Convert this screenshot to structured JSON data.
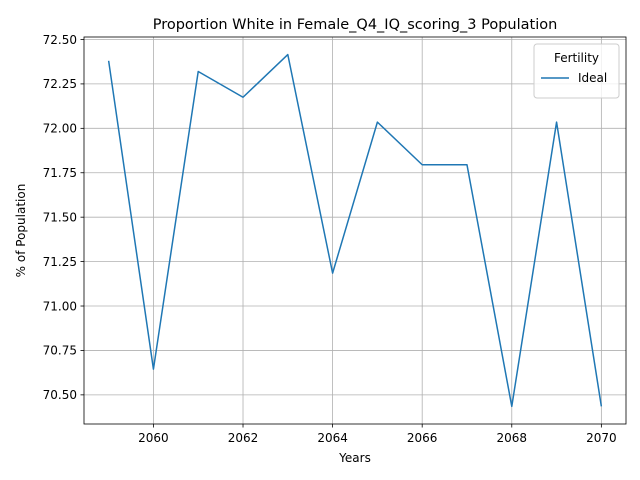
{
  "chart_data": {
    "type": "line",
    "title": "Proportion White in Female_Q4_IQ_scoring_3 Population",
    "xlabel": "Years",
    "ylabel": "% of Population",
    "x": [
      2059,
      2060,
      2061,
      2062,
      2063,
      2064,
      2065,
      2066,
      2067,
      2068,
      2069,
      2070
    ],
    "series": [
      {
        "name": "Ideal",
        "color": "#1f77b4",
        "values": [
          72.38,
          70.645,
          72.32,
          72.175,
          72.415,
          71.185,
          72.035,
          71.795,
          71.795,
          70.435,
          72.035,
          70.435
        ]
      }
    ],
    "xlim": [
      2058.45,
      2070.55
    ],
    "ylim": [
      70.336,
      72.514
    ],
    "xticks": [
      "2060",
      "2062",
      "2064",
      "2066",
      "2068",
      "2070"
    ],
    "yticks": [
      "70.50",
      "70.75",
      "71.00",
      "71.25",
      "71.50",
      "71.75",
      "72.00",
      "72.25",
      "72.50"
    ],
    "grid": true,
    "legend": {
      "title": "Fertility",
      "placement": "top-right"
    }
  }
}
